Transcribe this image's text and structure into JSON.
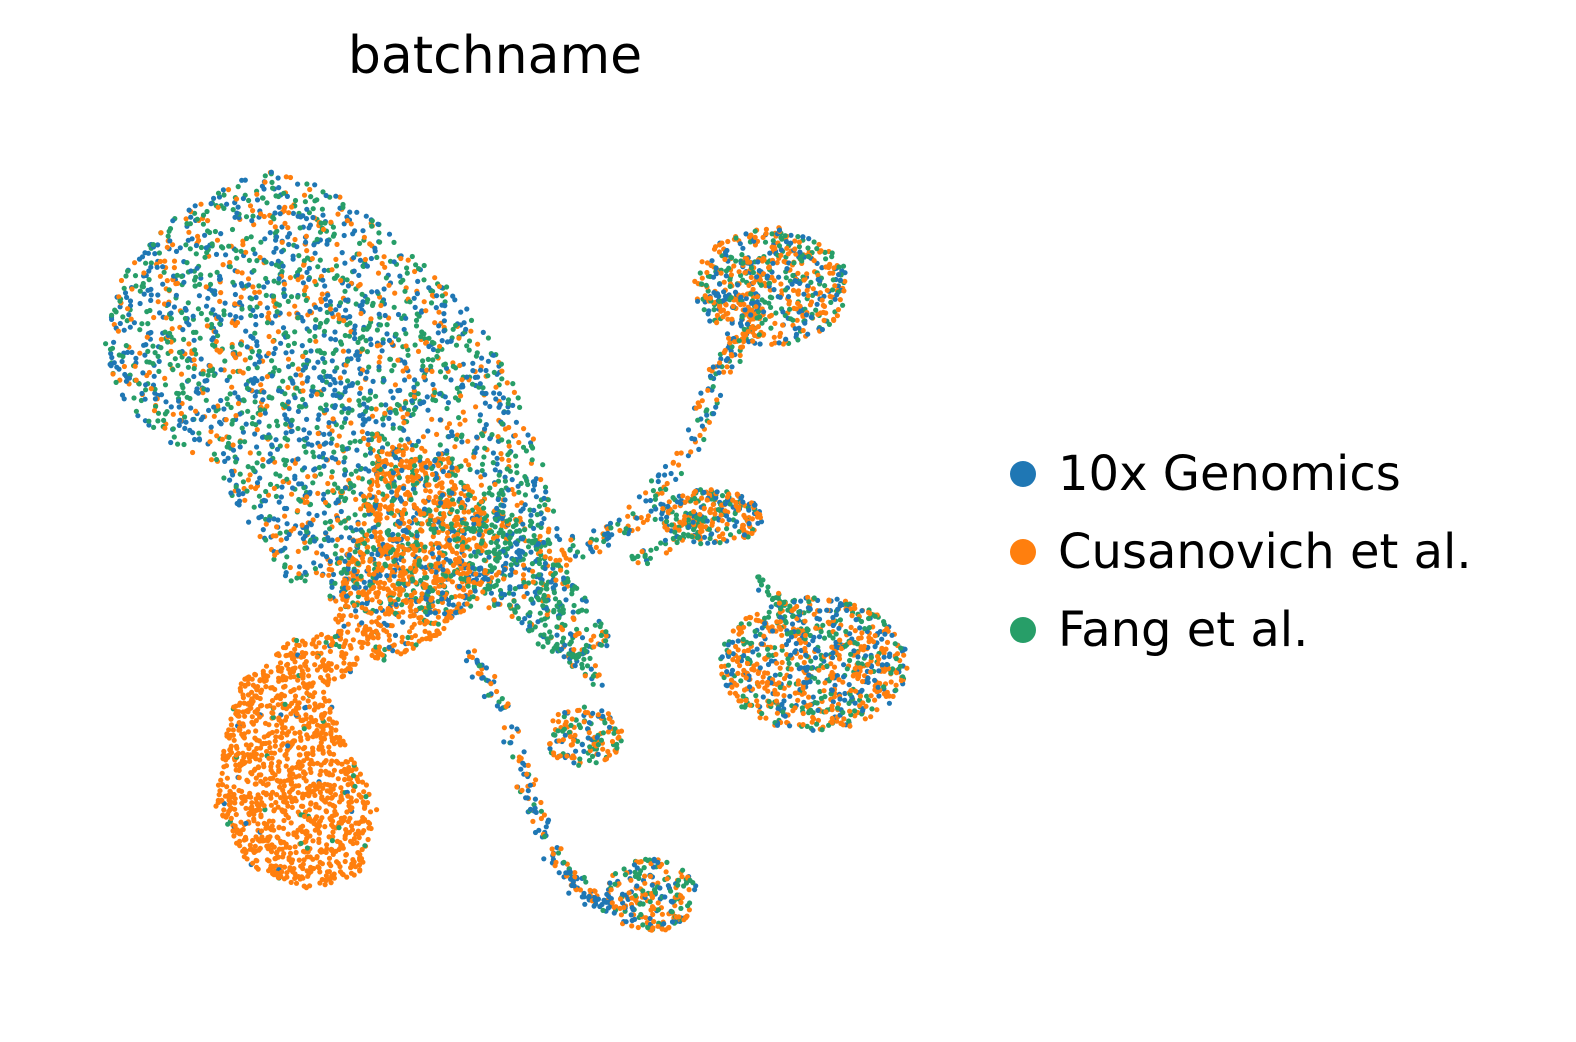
{
  "chart_data": {
    "type": "scatter",
    "title": "batchname",
    "xlabel": "",
    "ylabel": "",
    "axes_visible": false,
    "grid": false,
    "legend_position": "right",
    "xlim": [
      0,
      100
    ],
    "ylim": [
      0,
      100
    ],
    "series": [
      {
        "name": "10x Genomics",
        "color": "#1f77b4"
      },
      {
        "name": "Cusanovich et al.",
        "color": "#ff7f0e"
      },
      {
        "name": "Fang et al.",
        "color": "#279e68"
      }
    ],
    "regions": [
      {
        "id": "large-upper-left",
        "shape": "polygon",
        "poly": [
          [
            4,
            76
          ],
          [
            6,
            83
          ],
          [
            12,
            90
          ],
          [
            22,
            96
          ],
          [
            30,
            94
          ],
          [
            38,
            88
          ],
          [
            46,
            80
          ],
          [
            51,
            73
          ],
          [
            55,
            62
          ],
          [
            58,
            50
          ],
          [
            55,
            44
          ],
          [
            46,
            43
          ],
          [
            34,
            43
          ],
          [
            26,
            46
          ],
          [
            22,
            52
          ],
          [
            17,
            60
          ],
          [
            10,
            64
          ],
          [
            5,
            70
          ]
        ],
        "count": 2800,
        "weights": [
          0.4,
          0.22,
          0.38
        ],
        "seed": 11
      },
      {
        "id": "central-orange",
        "shape": "polygon",
        "poly": [
          [
            36,
            64
          ],
          [
            44,
            62
          ],
          [
            49,
            55
          ],
          [
            48,
            46
          ],
          [
            43,
            40
          ],
          [
            36,
            37
          ],
          [
            31,
            42
          ],
          [
            33,
            52
          ]
        ],
        "count": 900,
        "weights": [
          0.06,
          0.8,
          0.14
        ],
        "seed": 12
      },
      {
        "id": "central-green-branch",
        "shape": "polygon",
        "poly": [
          [
            49,
            56
          ],
          [
            54,
            54
          ],
          [
            61,
            44
          ],
          [
            64,
            40
          ],
          [
            60,
            37
          ],
          [
            52,
            42
          ],
          [
            48,
            46
          ]
        ],
        "count": 300,
        "weights": [
          0.22,
          0.18,
          0.6
        ],
        "seed": 13
      },
      {
        "id": "lower-left-orange",
        "shape": "polygon",
        "poly": [
          [
            32,
            41
          ],
          [
            26,
            40
          ],
          [
            20,
            35
          ],
          [
            18,
            28
          ],
          [
            17,
            20
          ],
          [
            21,
            13
          ],
          [
            28,
            10
          ],
          [
            34,
            12
          ],
          [
            36,
            20
          ],
          [
            32,
            28
          ],
          [
            30,
            34
          ],
          [
            34,
            37
          ]
        ],
        "count": 1200,
        "weights": [
          0.02,
          0.95,
          0.03
        ],
        "seed": 14
      },
      {
        "id": "upper-right-small",
        "shape": "ellipse",
        "cx": 82,
        "cy": 82,
        "rx": 9,
        "ry": 7,
        "count": 550,
        "weights": [
          0.3,
          0.45,
          0.25
        ],
        "seed": 15
      },
      {
        "id": "right-mid-cluster",
        "shape": "ellipse",
        "cx": 87,
        "cy": 37,
        "rx": 11,
        "ry": 8,
        "count": 800,
        "weights": [
          0.25,
          0.48,
          0.27
        ],
        "seed": 16
      },
      {
        "id": "mid-right-small",
        "shape": "ellipse",
        "cx": 75,
        "cy": 54.5,
        "rx": 6,
        "ry": 3.4,
        "count": 260,
        "weights": [
          0.3,
          0.45,
          0.25
        ],
        "seed": 17
      },
      {
        "id": "small-middle",
        "shape": "ellipse",
        "cx": 60,
        "cy": 28.5,
        "rx": 4.6,
        "ry": 3.6,
        "count": 140,
        "weights": [
          0.2,
          0.45,
          0.35
        ],
        "seed": 18
      },
      {
        "id": "bottom-small",
        "shape": "ellipse",
        "cx": 68,
        "cy": 9.5,
        "rx": 5.4,
        "ry": 4.4,
        "count": 230,
        "weights": [
          0.25,
          0.45,
          0.3
        ],
        "seed": 19
      },
      {
        "id": "right-strand",
        "shape": "path",
        "path": [
          [
            57,
            50
          ],
          [
            62,
            52
          ],
          [
            67,
            55
          ],
          [
            71,
            60
          ],
          [
            74,
            66
          ],
          [
            76,
            72
          ],
          [
            78,
            75
          ],
          [
            80,
            78
          ],
          [
            79,
            80
          ],
          [
            76,
            80
          ]
        ],
        "width": 1.3,
        "count": 240,
        "weights": [
          0.38,
          0.4,
          0.22
        ],
        "seed": 20
      },
      {
        "id": "lower-strand",
        "shape": "path",
        "path": [
          [
            47,
            38
          ],
          [
            50,
            33
          ],
          [
            53,
            24
          ],
          [
            56,
            15
          ],
          [
            60,
            10
          ],
          [
            63,
            8
          ]
        ],
        "width": 1.1,
        "count": 170,
        "weights": [
          0.55,
          0.3,
          0.15
        ],
        "seed": 21
      },
      {
        "id": "branch-to-mid-right",
        "shape": "path",
        "path": [
          [
            66,
            49
          ],
          [
            71,
            52
          ],
          [
            74,
            54
          ]
        ],
        "width": 0.8,
        "count": 40,
        "weights": [
          0.1,
          0.1,
          0.8
        ],
        "seed": 22
      },
      {
        "id": "branch-to-right-cluster",
        "shape": "path",
        "path": [
          [
            80,
            48
          ],
          [
            83,
            44
          ],
          [
            85,
            42
          ]
        ],
        "width": 0.9,
        "count": 35,
        "weights": [
          0.1,
          0.1,
          0.8
        ],
        "seed": 23
      },
      {
        "id": "central-tail",
        "shape": "path",
        "path": [
          [
            55,
            40
          ],
          [
            59,
            38
          ],
          [
            62,
            35
          ]
        ],
        "width": 1.0,
        "count": 45,
        "weights": [
          0.3,
          0.2,
          0.5
        ],
        "seed": 24
      }
    ]
  }
}
